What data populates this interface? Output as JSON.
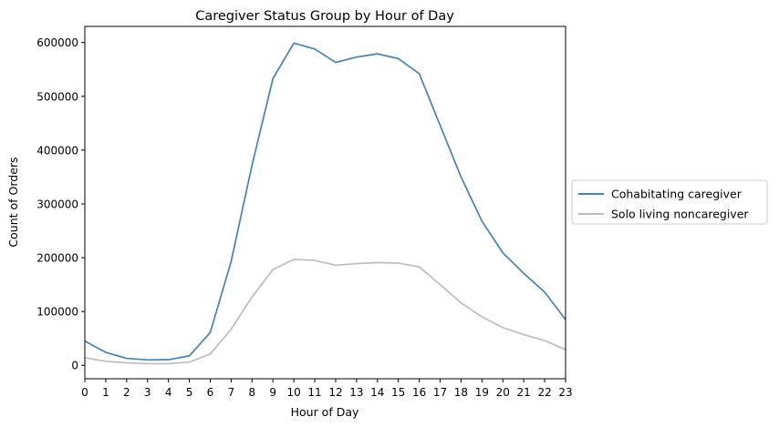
{
  "chart_data": {
    "type": "line",
    "title": "Caregiver Status Group by Hour of Day",
    "xlabel": "Hour of Day",
    "ylabel": "Count of Orders",
    "x": [
      0,
      1,
      2,
      3,
      4,
      5,
      6,
      7,
      8,
      9,
      10,
      11,
      12,
      13,
      14,
      15,
      16,
      17,
      18,
      19,
      20,
      21,
      22,
      23
    ],
    "xlim": [
      0,
      23
    ],
    "ylim": [
      -25000,
      630000
    ],
    "yticks": [
      0,
      100000,
      200000,
      300000,
      400000,
      500000,
      600000
    ],
    "xticks": [
      0,
      1,
      2,
      3,
      4,
      5,
      6,
      7,
      8,
      9,
      10,
      11,
      12,
      13,
      14,
      15,
      16,
      17,
      18,
      19,
      20,
      21,
      22,
      23
    ],
    "grid": false,
    "legend_position": "center-right-outside",
    "series": [
      {
        "name": "Cohabitating caregiver",
        "color": "#4682b4",
        "values": [
          45000,
          24000,
          13000,
          10000,
          10500,
          17500,
          61000,
          193000,
          372000,
          533000,
          599000,
          588000,
          563000,
          573000,
          579000,
          570000,
          542000,
          446000,
          350000,
          268000,
          209000,
          171000,
          136000,
          85000
        ]
      },
      {
        "name": "Solo living noncaregiver",
        "color": "#bdbdbd",
        "values": [
          14000,
          7500,
          4500,
          3000,
          3000,
          6000,
          21000,
          67000,
          127000,
          178000,
          197000,
          195000,
          186000,
          189000,
          191000,
          190000,
          183000,
          150000,
          116000,
          90000,
          70000,
          57000,
          46000,
          29000
        ]
      }
    ]
  }
}
